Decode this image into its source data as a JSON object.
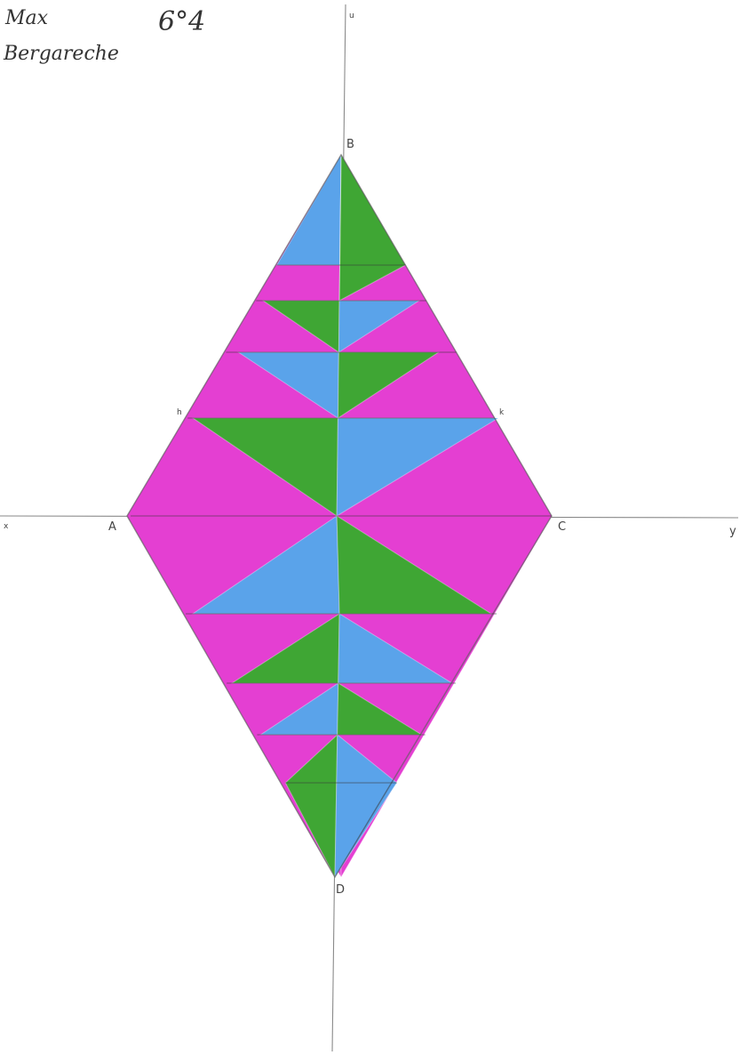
{
  "header": {
    "name_line1": "Max",
    "name_line2": "Bergareche",
    "grade": "6°4"
  },
  "points": {
    "A": "A",
    "B": "B",
    "C": "C",
    "D": "D",
    "x": "x",
    "y": "y",
    "u": "u",
    "k": "k",
    "h": "h"
  },
  "colors": {
    "magenta": "#e43fd2",
    "blue": "#5aa3ea",
    "green": "#3fa634",
    "axis": "#8a8a8a"
  }
}
